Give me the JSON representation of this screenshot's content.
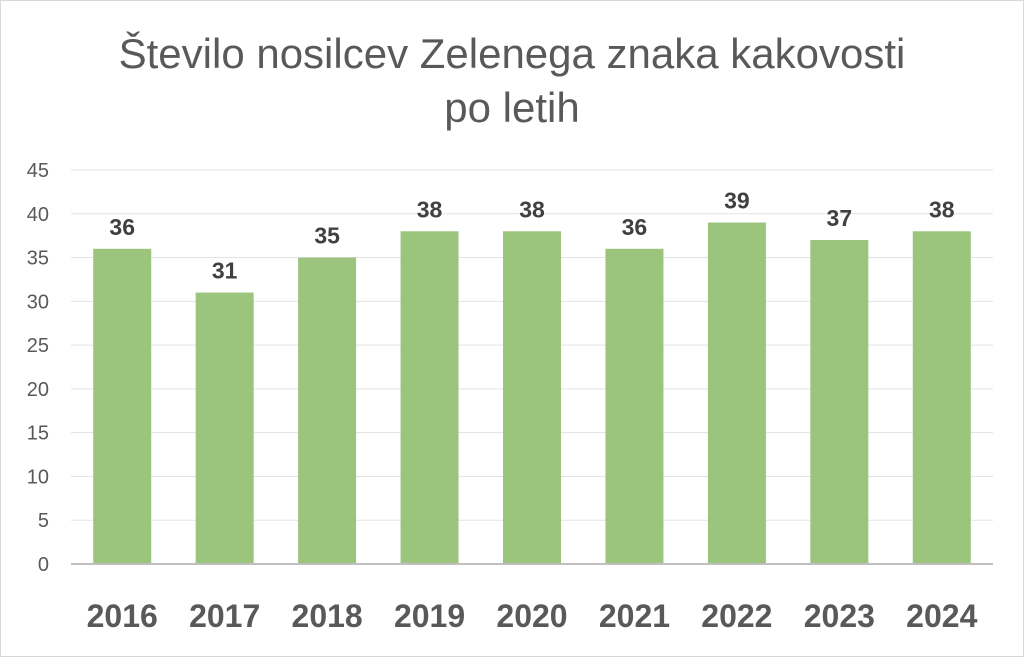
{
  "chart_data": {
    "type": "bar",
    "title": [
      "Število nosilcev Zelenega znaka kakovosti",
      "po letih"
    ],
    "categories": [
      "2016",
      "2017",
      "2018",
      "2019",
      "2020",
      "2021",
      "2022",
      "2023",
      "2024"
    ],
    "values": [
      36,
      31,
      35,
      38,
      38,
      36,
      39,
      37,
      38
    ],
    "xlabel": "",
    "ylabel": "",
    "ylim": [
      0,
      45
    ],
    "yticks": [
      0,
      5,
      10,
      15,
      20,
      25,
      30,
      35,
      40,
      45
    ],
    "grid": true,
    "legend": "none",
    "data_labels": true,
    "colors": {
      "bar": "#9bc47c",
      "grid": "#e3e3e3",
      "axis": "#bfbfbf",
      "text": "#595959",
      "data_label": "#404040"
    }
  }
}
